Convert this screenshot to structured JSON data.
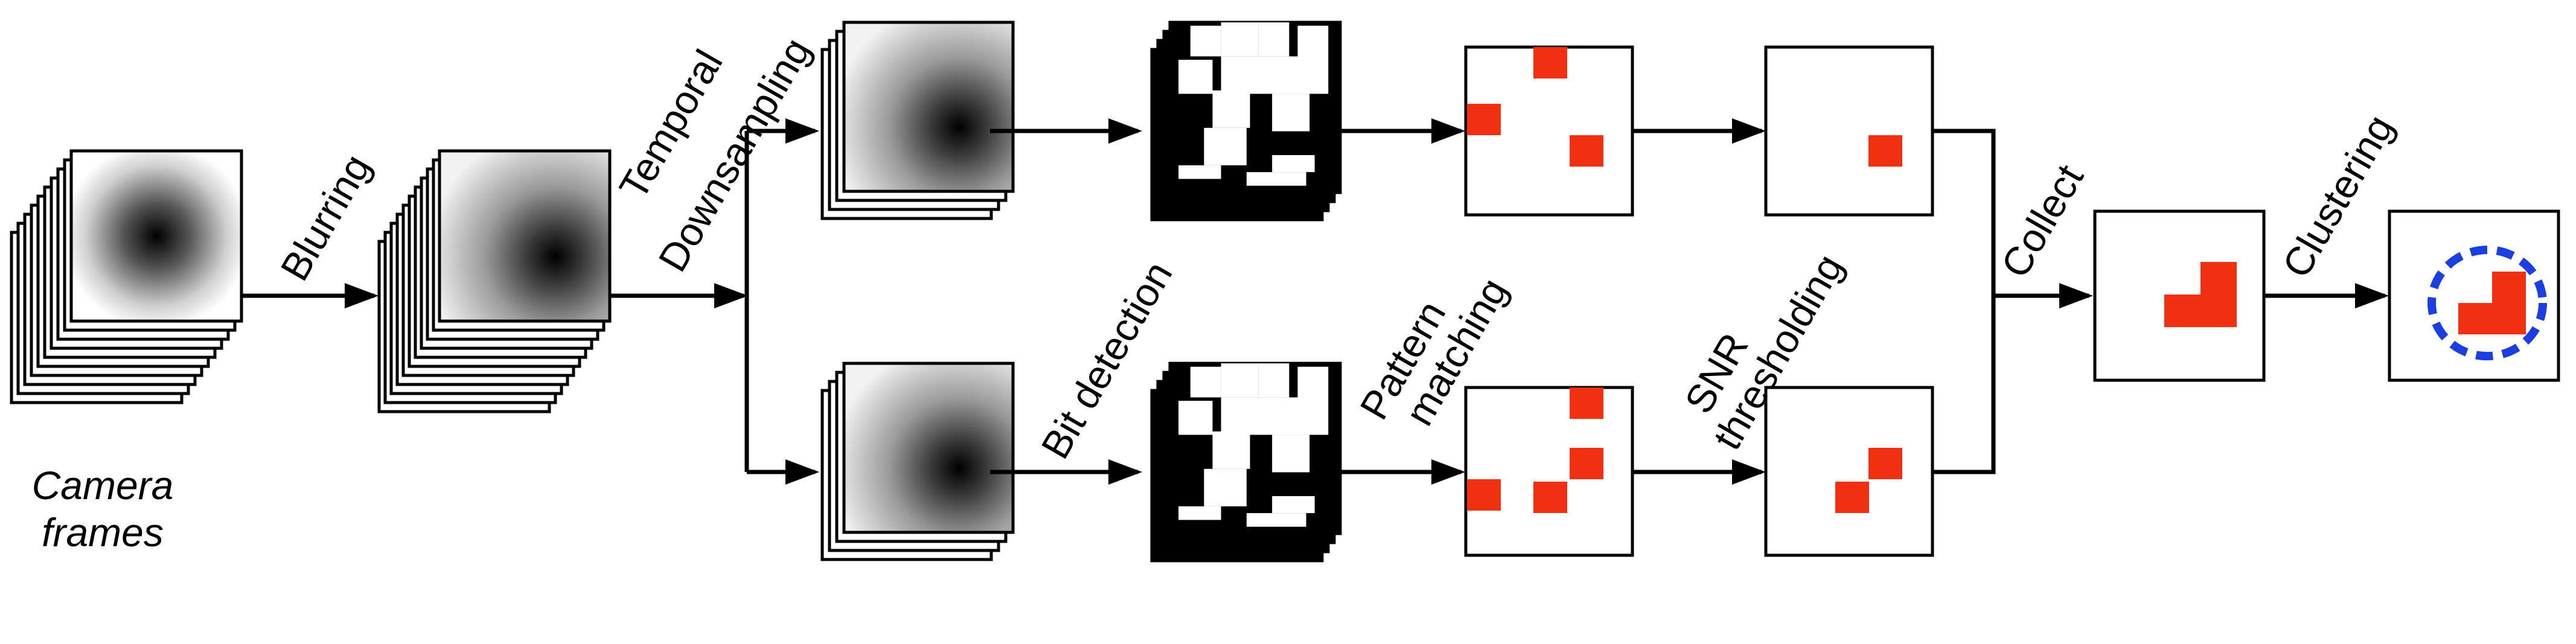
{
  "labels": {
    "camera_line1": "Camera",
    "camera_line2": "frames",
    "blurring": "Blurring",
    "temporal_line1": "Temporal",
    "temporal_line2": "Downsampling",
    "bit_detection": "Bit detection",
    "pattern_line1": "Pattern",
    "pattern_line2": "matching",
    "snr_line1": "SNR",
    "snr_line2": "thresholding",
    "collect": "Collect",
    "clustering": "Clustering"
  },
  "colors": {
    "line": "#000000",
    "detection": "#f03010",
    "cluster_ring": "#1a3ee0"
  }
}
